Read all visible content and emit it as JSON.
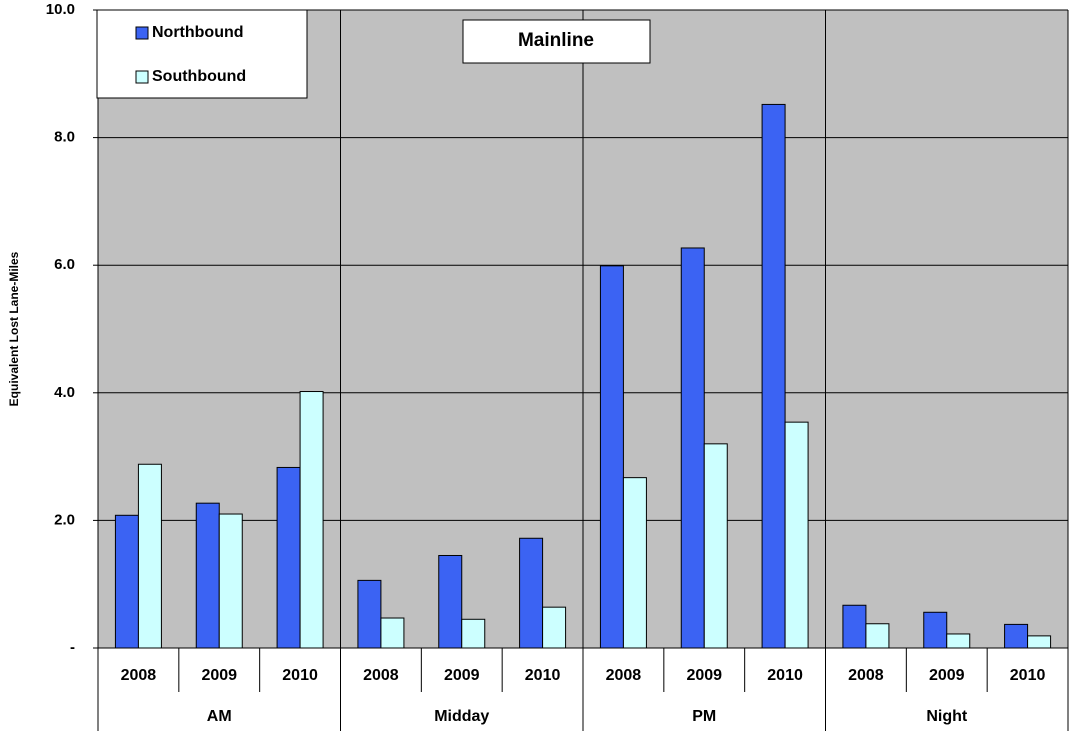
{
  "chart_data": {
    "type": "bar",
    "title": "Mainline",
    "y_label": "Equivalent Lost Lane-Miles",
    "groups": [
      "AM",
      "Midday",
      "PM",
      "Night"
    ],
    "categories": [
      "2008",
      "2009",
      "2010",
      "2008",
      "2009",
      "2010",
      "2008",
      "2009",
      "2010",
      "2008",
      "2009",
      "2010"
    ],
    "series": [
      {
        "name": "Northbound",
        "color": "#3b63f3",
        "values": [
          2.08,
          2.27,
          2.83,
          1.06,
          1.45,
          1.72,
          5.99,
          6.27,
          8.52,
          0.67,
          0.56,
          0.37
        ]
      },
      {
        "name": "Southbound",
        "color": "#ccffff",
        "values": [
          2.88,
          2.1,
          4.02,
          0.47,
          0.45,
          0.64,
          2.67,
          3.2,
          3.54,
          0.38,
          0.22,
          0.19
        ]
      }
    ],
    "ylim": [
      0,
      10
    ],
    "yticks": [
      {
        "value": 0,
        "label": "-"
      },
      {
        "value": 2,
        "label": "2.0"
      },
      {
        "value": 4,
        "label": "4.0"
      },
      {
        "value": 6,
        "label": "6.0"
      },
      {
        "value": 8,
        "label": "8.0"
      },
      {
        "value": 10,
        "label": "10.0"
      }
    ],
    "grid": true,
    "legend": "upper left"
  }
}
